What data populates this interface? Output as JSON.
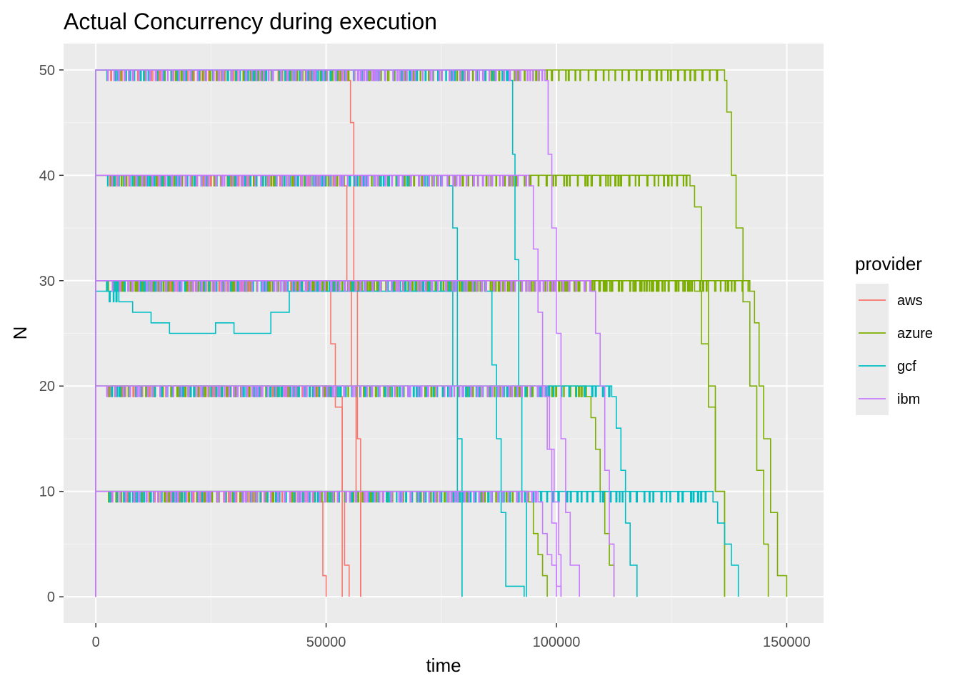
{
  "colors": {
    "panel_bg": "#EBEBEB",
    "grid_major": "#FFFFFF",
    "grid_minor": "#F5F5F5",
    "tick": "#333333"
  },
  "chart_data": {
    "type": "line",
    "title": "Actual Concurrency during execution",
    "xlabel": "time",
    "ylabel": "N",
    "xlim": [
      -7000,
      158000
    ],
    "ylim": [
      -2.5,
      52.5
    ],
    "x_ticks": [
      0,
      50000,
      100000,
      150000
    ],
    "x_tick_labels": [
      "0",
      "50000",
      "100000",
      "150000"
    ],
    "y_ticks": [
      0,
      10,
      20,
      30,
      40,
      50
    ],
    "y_tick_labels": [
      "0",
      "10",
      "20",
      "30",
      "40",
      "50"
    ],
    "grid": true,
    "step": true,
    "legend": {
      "title": "provider",
      "position": "right"
    },
    "series": [
      {
        "name": "aws",
        "color": "#F8766D",
        "runs": [
          {
            "level": 10,
            "x": [
              0,
              2000,
              49000,
              49300,
              50000
            ],
            "y": [
              0,
              10,
              9,
              2,
              0
            ]
          },
          {
            "level": 20,
            "x": [
              0,
              2000,
              51000,
              53500
            ],
            "y": [
              0,
              20,
              19,
              0
            ]
          },
          {
            "level": 30,
            "x": [
              0,
              2000,
              50000,
              51000,
              52000,
              53500,
              54000,
              55000
            ],
            "y": [
              0,
              30,
              29,
              24,
              18,
              10,
              3,
              0
            ]
          },
          {
            "level": 40,
            "x": [
              0,
              2000,
              53500,
              54500,
              55500,
              56500,
              57500
            ],
            "y": [
              0,
              40,
              39,
              30,
              20,
              10,
              0
            ]
          },
          {
            "level": 50,
            "x": [
              0,
              2000,
              54500,
              55300,
              56000,
              56800,
              57500
            ],
            "y": [
              0,
              50,
              49,
              45,
              30,
              15,
              0
            ]
          }
        ]
      },
      {
        "name": "azure",
        "color": "#7CAE00",
        "runs": [
          {
            "level": 10,
            "x": [
              0,
              2000,
              94000,
              95000,
              96000,
              97000,
              98000
            ],
            "y": [
              0,
              10,
              9,
              6,
              4,
              2,
              0
            ]
          },
          {
            "level": 20,
            "x": [
              0,
              2000,
              106500,
              107500,
              108500,
              109500,
              110500,
              111500,
              112500
            ],
            "y": [
              0,
              20,
              19,
              17,
              14,
              10,
              6,
              3,
              0
            ]
          },
          {
            "level": 30,
            "x": [
              0,
              2000,
              130000,
              131500,
              133000,
              134500,
              136500
            ],
            "y": [
              0,
              30,
              29,
              24,
              18,
              10,
              0
            ]
          },
          {
            "level": 40,
            "x": [
              0,
              2000,
              129000,
              130000,
              131500,
              133000,
              134500,
              136500
            ],
            "y": [
              0,
              40,
              39,
              37,
              30,
              20,
              10,
              0
            ]
          },
          {
            "level": 50,
            "x": [
              0,
              2000,
              136500,
              137000,
              138000,
              139000,
              140500,
              142000,
              143500,
              145000,
              146000
            ],
            "y": [
              0,
              50,
              49,
              46,
              40,
              35,
              28,
              20,
              12,
              5,
              0
            ]
          },
          {
            "level": 30,
            "x": [
              0,
              2000,
              142000,
              143000,
              144000,
              145000,
              146500,
              148000,
              150000
            ],
            "y": [
              0,
              30,
              29,
              26,
              20,
              15,
              8,
              2,
              0
            ]
          }
        ]
      },
      {
        "name": "gcf",
        "color": "#00BFC4",
        "runs": [
          {
            "level": 10,
            "x": [
              0,
              2000,
              134000,
              135000,
              136500,
              138000,
              139500
            ],
            "y": [
              0,
              10,
              9,
              7,
              5,
              3,
              0
            ]
          },
          {
            "level": 20,
            "x": [
              0,
              2000,
              112000,
              113000,
              114000,
              115000,
              116000,
              117500
            ],
            "y": [
              0,
              20,
              19,
              16,
              12,
              7,
              3,
              0
            ]
          },
          {
            "level": 29,
            "x": [
              0,
              2000,
              5000,
              8000,
              12000,
              16000,
              20000,
              26000,
              30000,
              34000,
              38000,
              42000,
              47000,
              76500,
              77500,
              78500,
              79500
            ],
            "y": [
              0,
              29,
              28,
              27,
              26,
              25,
              25,
              26,
              25,
              25,
              27,
              29,
              29,
              29,
              20,
              10,
              0
            ]
          },
          {
            "level": 40,
            "x": [
              0,
              2000,
              76500,
              77500,
              78500,
              79500
            ],
            "y": [
              0,
              40,
              39,
              35,
              15,
              0
            ]
          },
          {
            "level": 30,
            "x": [
              0,
              2000,
              84500,
              86000,
              87000,
              88000,
              89000,
              93000
            ],
            "y": [
              0,
              30,
              29,
              22,
              15,
              8,
              1,
              0
            ]
          },
          {
            "level": 50,
            "x": [
              0,
              2000,
              89500,
              90500,
              91000,
              91800,
              92500,
              93500
            ],
            "y": [
              0,
              50,
              49,
              42,
              32,
              20,
              10,
              0
            ]
          }
        ]
      },
      {
        "name": "ibm",
        "color": "#C77CFF",
        "runs": [
          {
            "level": 10,
            "x": [
              0,
              2000,
              96000,
              97000,
              98000,
              99000,
              100000,
              101000
            ],
            "y": [
              0,
              10,
              9,
              6,
              4,
              3,
              1,
              0
            ]
          },
          {
            "level": 20,
            "x": [
              0,
              2000,
              97500,
              98500,
              99500,
              100500,
              101000
            ],
            "y": [
              0,
              20,
              19,
              14,
              9,
              4,
              0
            ]
          },
          {
            "level": 40,
            "x": [
              0,
              2000,
              94000,
              95000,
              96000,
              97000,
              98000,
              99000,
              100000
            ],
            "y": [
              0,
              40,
              39,
              33,
              27,
              20,
              14,
              7,
              0
            ]
          },
          {
            "level": 50,
            "x": [
              0,
              2000,
              97500,
              98200,
              99000,
              100000,
              101000,
              102000,
              103000,
              105000
            ],
            "y": [
              0,
              50,
              49,
              42,
              35,
              25,
              15,
              8,
              3,
              0
            ]
          },
          {
            "level": 30,
            "x": [
              0,
              2000,
              107500,
              108500,
              109500,
              110500,
              111500,
              112500
            ],
            "y": [
              0,
              30,
              29,
              25,
              20,
              12,
              5,
              0
            ]
          }
        ]
      }
    ]
  }
}
